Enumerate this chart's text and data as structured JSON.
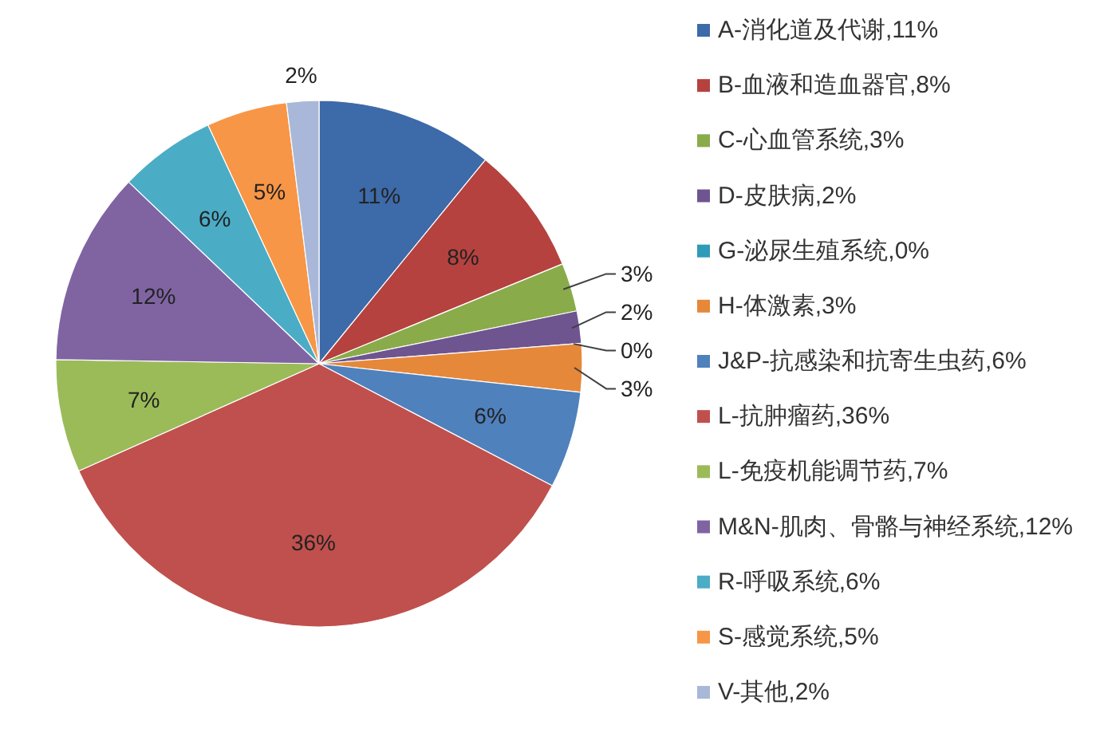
{
  "chart_data": {
    "type": "pie",
    "categories": [
      "A-消化道及代谢,11%",
      "B-血液和造血器官,8%",
      "C-心血管系统,3%",
      "D-皮肤病,2%",
      "G-泌尿生殖系统,0%",
      "H-体激素,3%",
      "J&P-抗感染和抗寄生虫药,6%",
      "L-抗肿瘤药,36%",
      "L-免疫机能调节药,7%",
      "M&N-肌肉、骨骼与神经系统,12%",
      "R-呼吸系统,6%",
      "S-感觉系统,5%",
      "V-其他,2%"
    ],
    "values": [
      11,
      8,
      3,
      2,
      0,
      3,
      6,
      36,
      7,
      12,
      6,
      5,
      2
    ],
    "value_labels": [
      "11%",
      "8%",
      "3%",
      "2%",
      "0%",
      "3%",
      "6%",
      "36%",
      "7%",
      "12%",
      "6%",
      "5%",
      "2%"
    ],
    "colors": [
      "#3d6aa8",
      "#b5423f",
      "#8aab4a",
      "#6e5590",
      "#2e9bb8",
      "#e6883a",
      "#4f81bd",
      "#c0504d",
      "#9bbb59",
      "#8064a2",
      "#4bacc6",
      "#f79646",
      "#a9b8d8"
    ],
    "legend": "right"
  }
}
